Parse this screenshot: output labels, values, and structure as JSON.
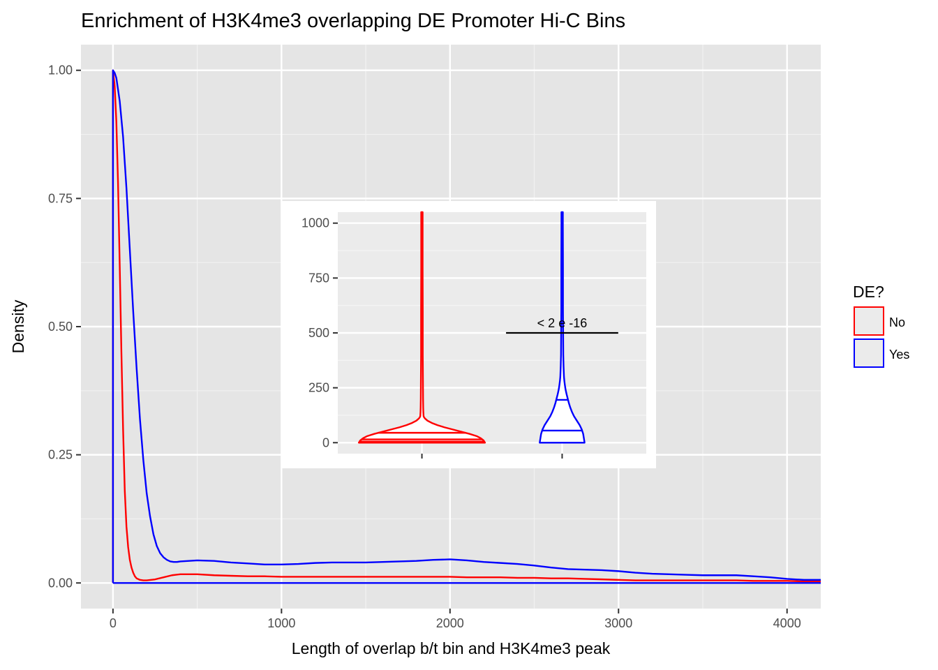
{
  "chart_data": [
    {
      "type": "line",
      "title": "Enrichment of H3K4me3 overlapping DE Promoter Hi-C Bins",
      "xlabel": "Length of overlap b/t bin and H3K4me3 peak",
      "ylabel": "Density",
      "xlim": [
        -190,
        4200
      ],
      "ylim": [
        -0.05,
        1.05
      ],
      "x_ticks": [
        0,
        1000,
        2000,
        3000,
        4000
      ],
      "x_tick_labels": [
        "0",
        "1000",
        "2000",
        "3000",
        "4000"
      ],
      "y_ticks": [
        0,
        0.25,
        0.5,
        0.75,
        1.0
      ],
      "y_tick_labels": [
        "0.00",
        "0.25",
        "0.50",
        "0.75",
        "1.00"
      ],
      "grid": true,
      "legend": {
        "title": "DE?",
        "position": "right",
        "entries": [
          {
            "label": "No",
            "color": "#ff0000"
          },
          {
            "label": "Yes",
            "color": "#0000ff"
          }
        ]
      },
      "series": [
        {
          "name": "No",
          "color": "#ff0000",
          "x": [
            0,
            0,
            10,
            20,
            30,
            40,
            50,
            60,
            70,
            80,
            90,
            100,
            110,
            120,
            130,
            140,
            160,
            180,
            200,
            250,
            300,
            350,
            400,
            500,
            600,
            700,
            800,
            900,
            1000,
            1100,
            1200,
            1300,
            1400,
            1500,
            1600,
            1700,
            1800,
            1900,
            2000,
            2100,
            2200,
            2300,
            2400,
            2500,
            2600,
            2700,
            2800,
            2900,
            3000,
            3100,
            3200,
            3300,
            3400,
            3500,
            3600,
            3700,
            3800,
            3900,
            4000,
            4100,
            4200
          ],
          "y": [
            0,
            1.0,
            0.97,
            0.9,
            0.78,
            0.62,
            0.45,
            0.3,
            0.18,
            0.11,
            0.07,
            0.045,
            0.03,
            0.02,
            0.013,
            0.009,
            0.006,
            0.005,
            0.005,
            0.007,
            0.011,
            0.015,
            0.017,
            0.017,
            0.015,
            0.014,
            0.013,
            0.013,
            0.012,
            0.012,
            0.012,
            0.012,
            0.012,
            0.012,
            0.012,
            0.012,
            0.012,
            0.012,
            0.012,
            0.011,
            0.011,
            0.011,
            0.01,
            0.01,
            0.009,
            0.009,
            0.008,
            0.007,
            0.006,
            0.005,
            0.005,
            0.005,
            0.005,
            0.005,
            0.005,
            0.005,
            0.004,
            0.004,
            0.004,
            0.003,
            0.003
          ]
        },
        {
          "name": "Yes",
          "color": "#0000ff",
          "x": [
            0,
            0,
            10,
            20,
            40,
            60,
            80,
            100,
            120,
            140,
            160,
            180,
            200,
            220,
            240,
            260,
            280,
            300,
            320,
            340,
            360,
            380,
            400,
            500,
            600,
            700,
            800,
            900,
            1000,
            1100,
            1200,
            1300,
            1400,
            1500,
            1600,
            1700,
            1800,
            1900,
            2000,
            2100,
            2200,
            2300,
            2400,
            2500,
            2600,
            2700,
            2800,
            2900,
            3000,
            3100,
            3200,
            3300,
            3400,
            3500,
            3600,
            3700,
            3800,
            3900,
            4000,
            4100,
            4200
          ],
          "y": [
            0,
            1.0,
            0.995,
            0.985,
            0.94,
            0.87,
            0.77,
            0.65,
            0.53,
            0.42,
            0.32,
            0.24,
            0.175,
            0.13,
            0.095,
            0.072,
            0.058,
            0.05,
            0.045,
            0.042,
            0.041,
            0.041,
            0.042,
            0.044,
            0.043,
            0.04,
            0.038,
            0.036,
            0.036,
            0.037,
            0.039,
            0.04,
            0.04,
            0.04,
            0.041,
            0.042,
            0.043,
            0.045,
            0.046,
            0.044,
            0.041,
            0.039,
            0.037,
            0.034,
            0.03,
            0.027,
            0.026,
            0.025,
            0.023,
            0.02,
            0.018,
            0.017,
            0.016,
            0.015,
            0.015,
            0.015,
            0.013,
            0.011,
            0.008,
            0.006,
            0.006
          ]
        },
        {
          "name": "baseline",
          "color": "#0000ff",
          "x": [
            0,
            4200
          ],
          "y": [
            0,
            0
          ]
        }
      ]
    },
    {
      "type": "violin",
      "title": "",
      "xlabel": "",
      "ylabel": "",
      "ylim": [
        -50,
        1050
      ],
      "y_ticks": [
        0,
        250,
        500,
        750,
        1000
      ],
      "y_tick_labels": [
        "0",
        "250",
        "500",
        "750",
        "1000"
      ],
      "categories": [
        "No",
        "Yes"
      ],
      "grid": true,
      "annotation": {
        "text": "< 2 e -16",
        "y": 500,
        "x_from": 0.6,
        "x_to": 1.4
      },
      "series": [
        {
          "name": "No",
          "color": "#ff0000",
          "profile_y": [
            0,
            10,
            20,
            30,
            40,
            50,
            60,
            70,
            80,
            90,
            100,
            110,
            115,
            120,
            140,
            160,
            200,
            300,
            400,
            600,
            800,
            1000,
            1050
          ],
          "profile_halfwidth": [
            0.45,
            0.44,
            0.42,
            0.39,
            0.34,
            0.28,
            0.22,
            0.16,
            0.11,
            0.07,
            0.04,
            0.022,
            0.016,
            0.012,
            0.01,
            0.009,
            0.008,
            0.007,
            0.006,
            0.006,
            0.005,
            0.005,
            0.005
          ],
          "quantiles": [
            5,
            15,
            45
          ]
        },
        {
          "name": "Yes",
          "color": "#0000ff",
          "profile_y": [
            0,
            20,
            40,
            60,
            80,
            100,
            120,
            140,
            160,
            180,
            200,
            220,
            240,
            260,
            280,
            300,
            350,
            400,
            500,
            600,
            800,
            1000,
            1050
          ],
          "profile_halfwidth": [
            0.16,
            0.155,
            0.15,
            0.14,
            0.125,
            0.105,
            0.085,
            0.07,
            0.058,
            0.048,
            0.04,
            0.032,
            0.025,
            0.02,
            0.016,
            0.013,
            0.01,
            0.008,
            0.007,
            0.006,
            0.006,
            0.005,
            0.005
          ],
          "quantiles": [
            55,
            195
          ]
        }
      ]
    }
  ]
}
